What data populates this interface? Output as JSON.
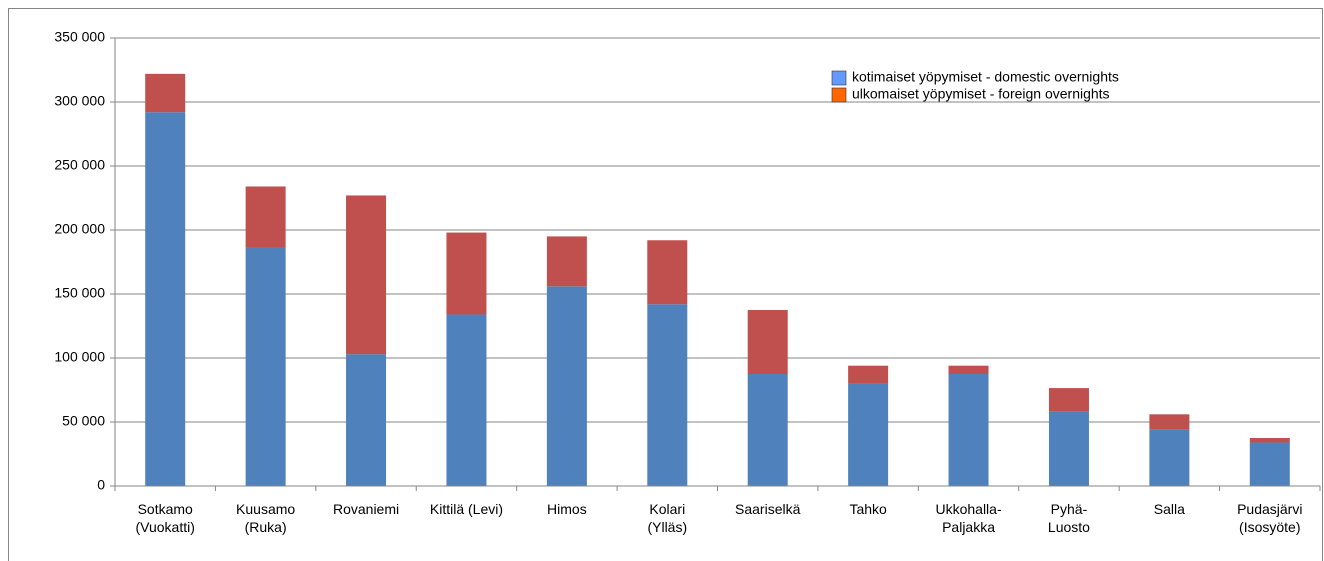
{
  "chart_data": {
    "type": "stacked_bar",
    "categories": [
      [
        "Sotkamo",
        "(Vuokatti)"
      ],
      [
        "Kuusamo",
        "(Ruka)"
      ],
      [
        "Rovaniemi"
      ],
      [
        "Kittilä (Levi)"
      ],
      [
        "Himos"
      ],
      [
        "Kolari",
        "(Ylläs)"
      ],
      [
        "Saariselkä"
      ],
      [
        "Tahko"
      ],
      [
        "Ukkohalla-",
        "Paljakka"
      ],
      [
        "Pyhä-",
        "Luosto"
      ],
      [
        "Salla"
      ],
      [
        "Pudasjärvi",
        "(Isosyöte)"
      ]
    ],
    "series": [
      {
        "name": "kotimaiset yöpymiset - domestic overnights",
        "color": "#4f81bd",
        "legend_color": "#6699ff",
        "values": [
          292000,
          186000,
          103000,
          134000,
          156000,
          142000,
          87500,
          80000,
          87500,
          58000,
          44000,
          34000
        ]
      },
      {
        "name": "ulkomaiset yöpymiset - foreign overnights",
        "color": "#c0504d",
        "legend_color": "#ff6600",
        "values": [
          30000,
          48000,
          124000,
          64000,
          39000,
          50000,
          50000,
          14000,
          6500,
          18500,
          12000,
          3500
        ]
      }
    ],
    "ylim": [
      0,
      350000
    ],
    "yticks": [
      0,
      {
        "value": 50000,
        "label": "50 000"
      },
      {
        "value": 100000,
        "label": "100 000"
      },
      {
        "value": 150000,
        "label": "150 000"
      },
      {
        "value": 200000,
        "label": "200 000"
      },
      {
        "value": 250000,
        "label": "250 000"
      },
      {
        "value": 300000,
        "label": "300 000"
      },
      {
        "value": 350000,
        "label": "350 000"
      }
    ],
    "grid": true,
    "legend": "upper right"
  }
}
